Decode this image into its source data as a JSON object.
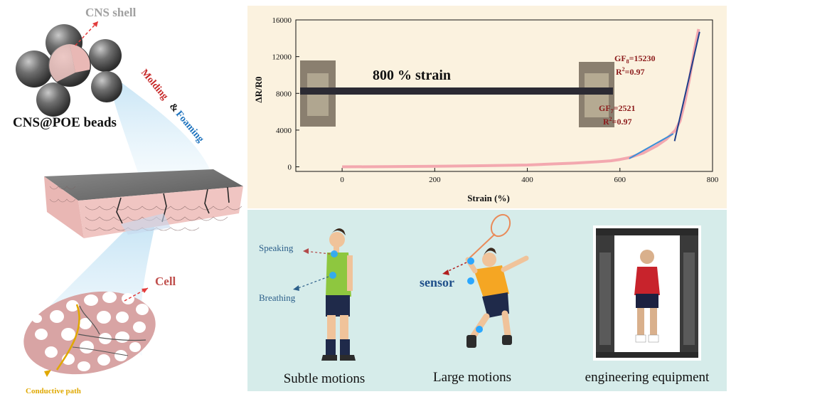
{
  "left_scheme": {
    "shell_label": "CNS shell",
    "beads_label": "CNS@POE beads",
    "process_word1": "Molding",
    "process_amp": "&",
    "process_word2": "Foaming",
    "cell_label": "Cell",
    "path_label": "Conductive path",
    "colors": {
      "shell": "#a0a0a0",
      "molding": "#c62828",
      "foaming": "#1e73be",
      "cell": "#c0504d",
      "path": "#e0a800"
    }
  },
  "chart_data": {
    "type": "line",
    "xlabel": "Strain (%)",
    "ylabel": "ΔR/R0",
    "xlim": [
      -100,
      800
    ],
    "ylim": [
      -500,
      16000
    ],
    "x_ticks": [
      0,
      200,
      400,
      600,
      800
    ],
    "y_ticks": [
      0,
      4000,
      8000,
      12000,
      16000
    ],
    "series": [
      {
        "x": [
          0,
          100,
          200,
          300,
          400,
          450,
          500,
          550,
          580,
          600,
          620,
          650,
          680,
          700,
          720,
          730,
          740,
          750,
          760,
          770
        ],
        "values": [
          0,
          20,
          60,
          120,
          200,
          300,
          400,
          550,
          650,
          800,
          1000,
          1500,
          2300,
          3000,
          4000,
          5000,
          7000,
          9500,
          12500,
          15000
        ],
        "color": "#f2a0aa"
      }
    ],
    "fits": [
      {
        "x": [
          620,
          715
        ],
        "values": [
          900,
          3600
        ],
        "color": "#3a8fd8"
      },
      {
        "x": [
          718,
          772
        ],
        "values": [
          2800,
          14700
        ],
        "color": "#1f3f8a"
      }
    ],
    "annotations": {
      "gf1_main": "GF",
      "gf1_sub": "7",
      "gf1_value": "=2521",
      "r1": "R",
      "r1_sup": "2",
      "r1_value": "=0.97",
      "gf2_main": "GF",
      "gf2_sub": "8",
      "gf2_value": "=15230",
      "r2": "R",
      "r2_sup": "2",
      "r2_value": "=0.97",
      "inset_text": "800 % strain"
    },
    "annotation_color": "#8b1a1a",
    "grid": false
  },
  "applications": {
    "speaking": "Speaking",
    "breathing": "Breathing",
    "sensor": "sensor",
    "captions": [
      "Subtle motions",
      "Large motions",
      "engineering equipment"
    ],
    "label_color": "#2c5f8a"
  }
}
